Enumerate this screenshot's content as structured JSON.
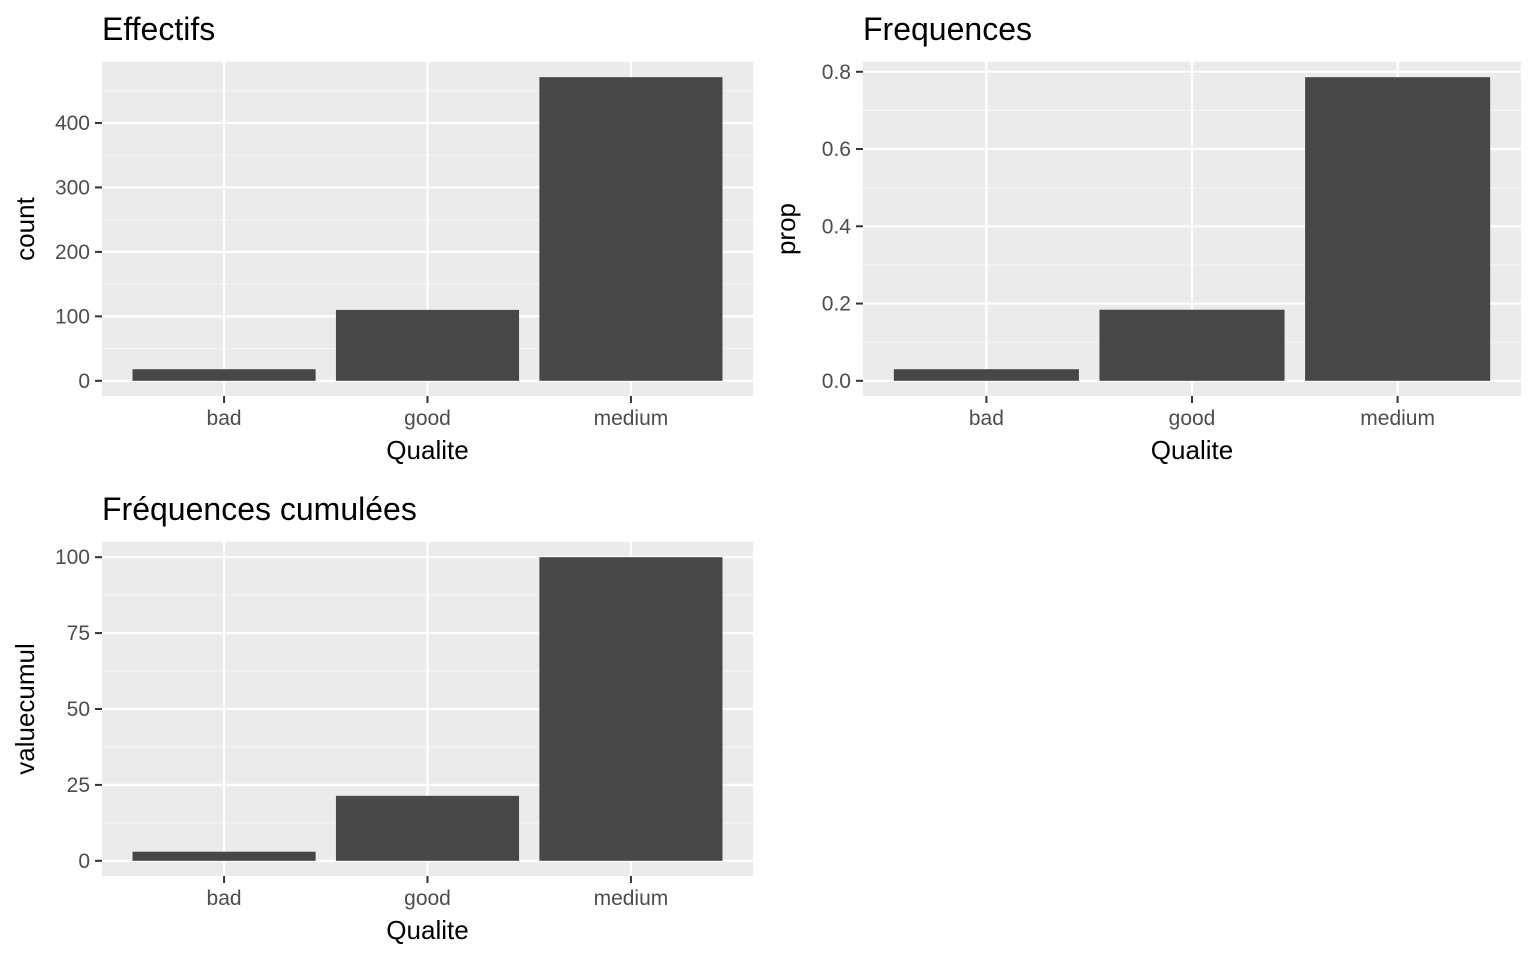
{
  "colors": {
    "panel_background": "#ebebeb",
    "grid_major": "#ffffff",
    "grid_minor": "#f5f5f5",
    "bar_fill": "#474747",
    "tick_color": "#333333",
    "tick_label": "#4d4d4d",
    "text": "#000000"
  },
  "chart_data": [
    {
      "type": "bar",
      "title": "Effectifs",
      "xlabel": "Qualite",
      "ylabel": "count",
      "categories": [
        "bad",
        "good",
        "medium"
      ],
      "values": [
        18,
        110,
        471
      ],
      "ylim": [
        -23.55,
        494.55
      ],
      "yticks": [
        0,
        100,
        200,
        300,
        400
      ],
      "ytick_labels": [
        "0",
        "100",
        "200",
        "300",
        "400"
      ],
      "grid": true
    },
    {
      "type": "bar",
      "title": "Frequences",
      "xlabel": "Qualite",
      "ylabel": "prop",
      "categories": [
        "bad",
        "good",
        "medium"
      ],
      "values": [
        0.03,
        0.184,
        0.786
      ],
      "ylim": [
        -0.0393,
        0.8253
      ],
      "yticks": [
        0,
        0.2,
        0.4,
        0.6,
        0.8
      ],
      "ytick_labels": [
        "0.0",
        "0.2",
        "0.4",
        "0.6",
        "0.8"
      ],
      "grid": true
    },
    {
      "type": "bar",
      "title": "Fréquences cumulées",
      "xlabel": "Qualite",
      "ylabel": "valuecumul",
      "categories": [
        "bad",
        "good",
        "medium"
      ],
      "values": [
        3,
        21.4,
        100
      ],
      "ylim": [
        -5,
        105
      ],
      "yticks": [
        0,
        25,
        50,
        75,
        100
      ],
      "ytick_labels": [
        "0",
        "25",
        "50",
        "75",
        "100"
      ],
      "grid": true
    }
  ]
}
